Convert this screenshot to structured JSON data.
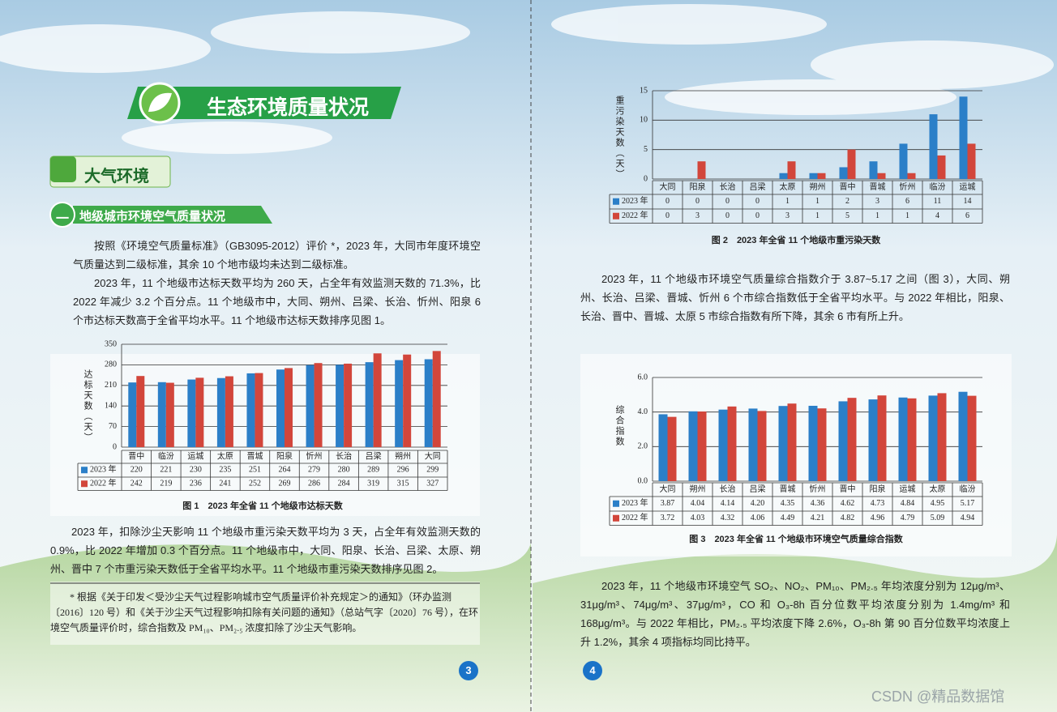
{
  "banner": {
    "title": "生态环境质量状况"
  },
  "section": {
    "title": "大气环境"
  },
  "subsection": {
    "number": "一",
    "title": "地级城市环境空气质量状况"
  },
  "paragraphs": [
    "按照《环境空气质量标准》（GB3095-2012）评价 *，2023 年，大同市年度环境空气质量达到二级标准，其余 10 个地市级均未达到二级标准。",
    "2023 年，11 个地级市达标天数平均为 260 天，占全年有效监测天数的 71.3%，比 2022 年减少 3.2 个百分点。11 个地级市中，大同、朔州、吕梁、长治、忻州、阳泉 6 个市达标天数高于全省平均水平。11 个地级市达标天数排序见图 1。",
    "2023 年，扣除沙尘天影响 11 个地级市重污染天数平均为 3 天，占全年有效监测天数的 0.9%，比 2022 年增加 0.3 个百分点。11 个地级市中，大同、阳泉、长治、吕梁、太原、朔州、晋中 7 个市重污染天数低于全省平均水平。11 个地级市重污染天数排序见图 2。",
    "2023 年，11 个地级市环境空气质量综合指数介于 3.87~5.17 之间（图 3），大同、朔州、长治、吕梁、晋城、忻州 6 个市综合指数低于全省平均水平。与 2022 年相比，阳泉、长治、晋中、晋城、太原 5 市综合指数有所下降，其余 6 市有所上升。",
    "2023 年，11 个地级市环境空气 SO₂、NO₂、PM₁₀、PM₂.₅ 年均浓度分别为 12μg/m³、31μg/m³、74μg/m³、37μg/m³，CO 和 O₃-8h 百分位数平均浓度分别为 1.4mg/m³ 和 168μg/m³。与 2022 年相比，PM₂.₅ 平均浓度下降 2.6%，O₃-8h 第 90 百分位数平均浓度上升 1.2%，其余 4 项指标均同比持平。"
  ],
  "footnote": "* 根据《关于印发＜受沙尘天气过程影响城市空气质量评价补充规定＞的通知》（环办监测〔2016〕120 号）和《关于沙尘天气过程影响扣除有关问题的通知》（总站气字〔2020〕76 号），在环境空气质量评价时，综合指数及 PM₁₀、PM₂.₅ 浓度扣除了沙尘天气影响。",
  "page_numbers": [
    "3",
    "4"
  ],
  "watermark": "CSDN @精品数据馆",
  "chart_data": [
    {
      "type": "bar",
      "caption": "图 1　2023 年全省 11 个地级市达标天数",
      "y_label": "达标天数（天）",
      "categories": [
        "晋中",
        "临汾",
        "运城",
        "太原",
        "晋城",
        "阳泉",
        "忻州",
        "长治",
        "吕梁",
        "朔州",
        "大同"
      ],
      "series": [
        {
          "name": "2023 年",
          "color": "#2b7fc8",
          "values": [
            220,
            221,
            230,
            235,
            251,
            264,
            279,
            280,
            289,
            296,
            299
          ]
        },
        {
          "name": "2022 年",
          "color": "#d2463b",
          "values": [
            242,
            219,
            236,
            241,
            252,
            269,
            286,
            284,
            319,
            315,
            327
          ]
        }
      ],
      "ylim": [
        0,
        350
      ],
      "yticks": [
        0,
        70,
        140,
        210,
        280,
        350
      ],
      "grid": true
    },
    {
      "type": "bar",
      "caption": "图 2　2023 年全省 11 个地级市重污染天数",
      "y_label": "重污染天数（天）",
      "categories": [
        "大同",
        "阳泉",
        "长治",
        "吕梁",
        "太原",
        "朔州",
        "晋中",
        "晋城",
        "忻州",
        "临汾",
        "运城"
      ],
      "series": [
        {
          "name": "2023 年",
          "color": "#2b7fc8",
          "values": [
            0,
            0,
            0,
            0,
            1,
            1,
            2,
            3,
            6,
            11,
            14
          ]
        },
        {
          "name": "2022 年",
          "color": "#d2463b",
          "values": [
            0,
            3,
            0,
            0,
            3,
            1,
            5,
            1,
            1,
            4,
            6
          ]
        }
      ],
      "ylim": [
        0,
        15
      ],
      "yticks": [
        0,
        5,
        10,
        15
      ],
      "grid": true
    },
    {
      "type": "bar",
      "caption": "图 3　2023 年全省 11 个地级市环境空气质量综合指数",
      "y_label": "综合指数",
      "categories": [
        "大同",
        "朔州",
        "长治",
        "吕梁",
        "晋城",
        "忻州",
        "晋中",
        "阳泉",
        "运城",
        "太原",
        "临汾"
      ],
      "series": [
        {
          "name": "2023 年",
          "color": "#2b7fc8",
          "values": [
            3.87,
            4.04,
            4.14,
            4.2,
            4.35,
            4.36,
            4.62,
            4.73,
            4.84,
            4.95,
            5.17
          ],
          "value_labels": [
            "3.87",
            "4.04",
            "4.14",
            "4.20",
            "4.35",
            "4.36",
            "4.62",
            "4.73",
            "4.84",
            "4.95",
            "5.17"
          ]
        },
        {
          "name": "2022 年",
          "color": "#d2463b",
          "values": [
            3.72,
            4.03,
            4.32,
            4.06,
            4.49,
            4.21,
            4.82,
            4.96,
            4.79,
            5.09,
            4.94
          ],
          "value_labels": [
            "3.72",
            "4.03",
            "4.32",
            "4.06",
            "4.49",
            "4.21",
            "4.82",
            "4.96",
            "4.79",
            "5.09",
            "4.94"
          ]
        }
      ],
      "ylim": [
        0,
        6
      ],
      "yticks": [
        {
          "value": 0,
          "label": "0.0"
        },
        {
          "value": 2,
          "label": "2.0"
        },
        {
          "value": 4,
          "label": "4.0"
        },
        {
          "value": 6,
          "label": "6.0"
        }
      ],
      "grid": true
    }
  ]
}
